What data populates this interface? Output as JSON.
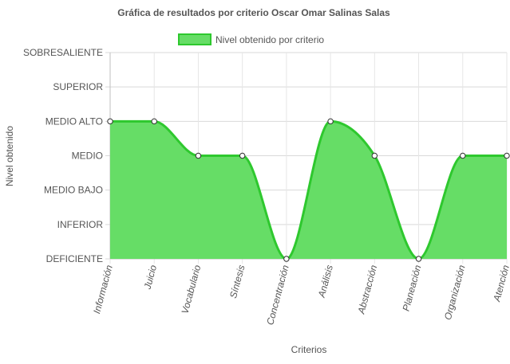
{
  "chart_data": {
    "type": "area",
    "title": "Gráfica de resultados por criterio Oscar Omar Salinas Salas",
    "xlabel": "Criterios",
    "ylabel": "Nivel obtenido",
    "legend_position": "top",
    "grid": true,
    "y_levels": [
      "DEFICIENTE",
      "INFERIOR",
      "MEDIO BAJO",
      "MEDIO",
      "MEDIO ALTO",
      "SUPERIOR",
      "SOBRESALIENTE"
    ],
    "ylim": [
      0,
      6
    ],
    "categories": [
      "Información",
      "Juicio",
      "Vocabulario",
      "Síntesis",
      "Concentración",
      "Análisis",
      "Abstracción",
      "Planeación",
      "Organización",
      "Atención"
    ],
    "series": [
      {
        "name": "Nivel obtenido por criterio",
        "values": [
          4,
          4,
          3,
          3,
          0,
          4,
          3,
          0,
          3,
          3
        ],
        "fill_color": "#66dd66",
        "line_color": "#2ec82e"
      }
    ]
  }
}
